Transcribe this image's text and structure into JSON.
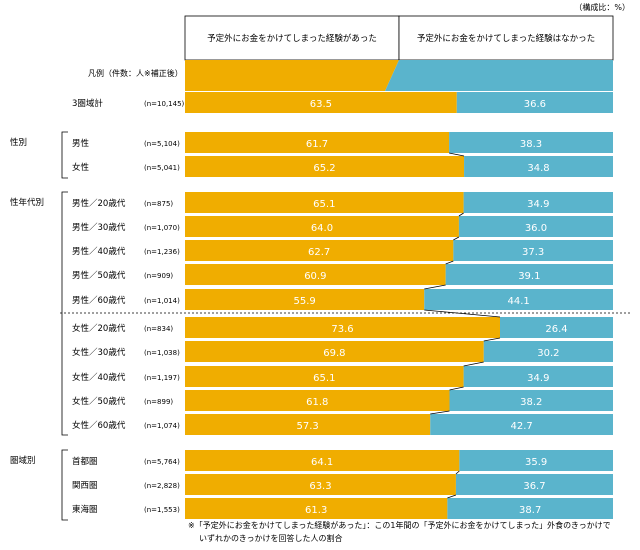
{
  "unit_note": "（構成比：%）",
  "headers": [
    "予定外にお金をかけてしまった経験があった",
    "予定外にお金をかけてしまった経験はなかった"
  ],
  "legend_label": "凡例（件数：人※補正後）",
  "footnote": [
    "※「予定外にお金をかけてしまった経験があった」：この1年間の「予定外にお金をかけてしまった」外食のきっかけで",
    "いずれかのきっかけを回答した人の割合"
  ],
  "colors": {
    "yes": "#f0ad00",
    "no": "#5ab4cc"
  },
  "chart_data": {
    "type": "bar",
    "stacked": true,
    "orientation": "horizontal",
    "xlim": [
      0,
      100
    ],
    "series": [
      {
        "name": "予定外にお金をかけてしまった経験があった",
        "color": "#f0ad00"
      },
      {
        "name": "予定外にお金をかけてしまった経験はなかった",
        "color": "#5ab4cc"
      }
    ],
    "groups": [
      {
        "label": "",
        "rows": [
          {
            "label": "3圏域計",
            "n": "(n=10,145)",
            "values": [
              63.5,
              36.6
            ]
          }
        ]
      },
      {
        "label": "性別",
        "rows": [
          {
            "label": "男性",
            "n": "(n=5,104)",
            "values": [
              61.7,
              38.3
            ]
          },
          {
            "label": "女性",
            "n": "(n=5,041)",
            "values": [
              65.2,
              34.8
            ]
          }
        ]
      },
      {
        "label": "性年代別",
        "rows": [
          {
            "label": "男性／20歳代",
            "n": "(n=875)",
            "values": [
              65.1,
              34.9
            ]
          },
          {
            "label": "男性／30歳代",
            "n": "(n=1,070)",
            "values": [
              64.0,
              36.0
            ]
          },
          {
            "label": "男性／40歳代",
            "n": "(n=1,236)",
            "values": [
              62.7,
              37.3
            ]
          },
          {
            "label": "男性／50歳代",
            "n": "(n=909)",
            "values": [
              60.9,
              39.1
            ]
          },
          {
            "label": "男性／60歳代",
            "n": "(n=1,014)",
            "values": [
              55.9,
              44.1
            ]
          },
          {
            "label": "女性／20歳代",
            "n": "(n=834)",
            "values": [
              73.6,
              26.4
            ]
          },
          {
            "label": "女性／30歳代",
            "n": "(n=1,038)",
            "values": [
              69.8,
              30.2
            ]
          },
          {
            "label": "女性／40歳代",
            "n": "(n=1,197)",
            "values": [
              65.1,
              34.9
            ]
          },
          {
            "label": "女性／50歳代",
            "n": "(n=899)",
            "values": [
              61.8,
              38.2
            ]
          },
          {
            "label": "女性／60歳代",
            "n": "(n=1,074)",
            "values": [
              57.3,
              42.7
            ]
          }
        ]
      },
      {
        "label": "圏域別",
        "rows": [
          {
            "label": "首都圏",
            "n": "(n=5,764)",
            "values": [
              64.1,
              35.9
            ]
          },
          {
            "label": "関西圏",
            "n": "(n=2,828)",
            "values": [
              63.3,
              36.7
            ]
          },
          {
            "label": "東海圏",
            "n": "(n=1,553)",
            "values": [
              61.3,
              38.7
            ]
          }
        ]
      }
    ]
  }
}
